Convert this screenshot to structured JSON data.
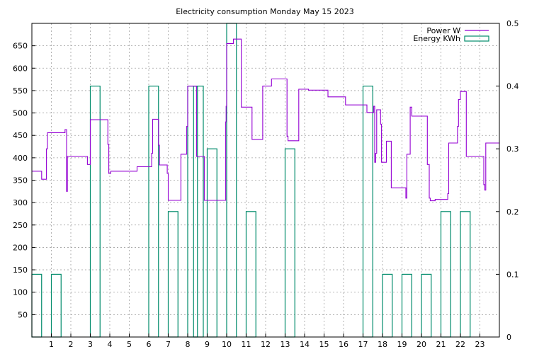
{
  "chart_data": {
    "type": "line",
    "title": "Electricity consumption Monday May 15 2023",
    "grid": true,
    "legend_position": "top-right",
    "x_axis": {
      "range": [
        0,
        24
      ],
      "ticks": [
        1,
        2,
        3,
        4,
        5,
        6,
        7,
        8,
        9,
        10,
        11,
        12,
        13,
        14,
        15,
        16,
        17,
        18,
        19,
        20,
        21,
        22,
        23
      ]
    },
    "y_axis_left": {
      "range": [
        0,
        700
      ],
      "ticks": [
        50,
        100,
        150,
        200,
        250,
        300,
        350,
        400,
        450,
        500,
        550,
        600,
        650
      ]
    },
    "y_axis_right": {
      "range": [
        0,
        0.5
      ],
      "ticks": [
        "0",
        "0.1",
        "0.2",
        "0.3",
        "0.4",
        "0.5"
      ],
      "tick_values": [
        0,
        0.1,
        0.2,
        0.3,
        0.4,
        0.5
      ]
    },
    "series": [
      {
        "name": "Power W",
        "type": "step-line",
        "axis": "left",
        "color": "#9400d3",
        "points": [
          [
            0.0,
            370
          ],
          [
            0.5,
            370
          ],
          [
            0.5,
            352
          ],
          [
            0.75,
            352
          ],
          [
            0.75,
            420
          ],
          [
            0.8,
            420
          ],
          [
            0.8,
            456
          ],
          [
            1.7,
            456
          ],
          [
            1.7,
            463
          ],
          [
            1.78,
            463
          ],
          [
            1.78,
            325
          ],
          [
            1.82,
            325
          ],
          [
            1.82,
            403
          ],
          [
            2.85,
            403
          ],
          [
            2.85,
            385
          ],
          [
            3.0,
            385
          ],
          [
            3.0,
            485
          ],
          [
            3.9,
            485
          ],
          [
            3.9,
            430
          ],
          [
            3.95,
            430
          ],
          [
            3.95,
            365
          ],
          [
            4.05,
            365
          ],
          [
            4.05,
            370
          ],
          [
            5.4,
            370
          ],
          [
            5.4,
            380
          ],
          [
            6.15,
            380
          ],
          [
            6.15,
            410
          ],
          [
            6.2,
            410
          ],
          [
            6.2,
            486
          ],
          [
            6.5,
            486
          ],
          [
            6.5,
            428
          ],
          [
            6.55,
            428
          ],
          [
            6.55,
            384
          ],
          [
            6.95,
            384
          ],
          [
            6.95,
            365
          ],
          [
            7.0,
            365
          ],
          [
            7.0,
            305
          ],
          [
            7.65,
            305
          ],
          [
            7.65,
            408
          ],
          [
            7.95,
            408
          ],
          [
            7.95,
            470
          ],
          [
            8.0,
            470
          ],
          [
            8.0,
            560
          ],
          [
            8.45,
            560
          ],
          [
            8.45,
            403
          ],
          [
            8.85,
            403
          ],
          [
            8.85,
            305
          ],
          [
            9.95,
            305
          ],
          [
            9.95,
            480
          ],
          [
            9.97,
            480
          ],
          [
            9.97,
            515
          ],
          [
            10.0,
            515
          ],
          [
            10.0,
            655
          ],
          [
            10.35,
            655
          ],
          [
            10.35,
            665
          ],
          [
            10.75,
            665
          ],
          [
            10.75,
            513
          ],
          [
            11.3,
            513
          ],
          [
            11.3,
            441
          ],
          [
            11.85,
            441
          ],
          [
            11.85,
            560
          ],
          [
            12.3,
            560
          ],
          [
            12.3,
            576
          ],
          [
            13.1,
            576
          ],
          [
            13.1,
            448
          ],
          [
            13.15,
            448
          ],
          [
            13.15,
            438
          ],
          [
            13.7,
            438
          ],
          [
            13.7,
            553
          ],
          [
            14.2,
            553
          ],
          [
            14.2,
            551
          ],
          [
            15.2,
            551
          ],
          [
            15.2,
            536
          ],
          [
            16.1,
            536
          ],
          [
            16.1,
            518
          ],
          [
            17.2,
            518
          ],
          [
            17.2,
            501
          ],
          [
            17.55,
            501
          ],
          [
            17.55,
            515
          ],
          [
            17.6,
            515
          ],
          [
            17.6,
            390
          ],
          [
            17.65,
            390
          ],
          [
            17.65,
            410
          ],
          [
            17.7,
            410
          ],
          [
            17.7,
            507
          ],
          [
            17.9,
            507
          ],
          [
            17.9,
            475
          ],
          [
            17.95,
            475
          ],
          [
            17.95,
            390
          ],
          [
            18.2,
            390
          ],
          [
            18.2,
            437
          ],
          [
            18.45,
            437
          ],
          [
            18.45,
            333
          ],
          [
            19.2,
            333
          ],
          [
            19.2,
            310
          ],
          [
            19.25,
            310
          ],
          [
            19.25,
            408
          ],
          [
            19.42,
            408
          ],
          [
            19.42,
            513
          ],
          [
            19.5,
            513
          ],
          [
            19.5,
            493
          ],
          [
            20.3,
            493
          ],
          [
            20.3,
            385
          ],
          [
            20.4,
            385
          ],
          [
            20.4,
            310
          ],
          [
            20.45,
            310
          ],
          [
            20.45,
            304
          ],
          [
            20.7,
            304
          ],
          [
            20.7,
            307
          ],
          [
            21.35,
            307
          ],
          [
            21.35,
            320
          ],
          [
            21.4,
            320
          ],
          [
            21.4,
            433
          ],
          [
            21.85,
            433
          ],
          [
            21.85,
            470
          ],
          [
            21.9,
            470
          ],
          [
            21.9,
            530
          ],
          [
            22.0,
            530
          ],
          [
            22.0,
            548
          ],
          [
            22.3,
            548
          ],
          [
            22.3,
            403
          ],
          [
            23.2,
            403
          ],
          [
            23.2,
            340
          ],
          [
            23.25,
            340
          ],
          [
            23.25,
            328
          ],
          [
            23.3,
            328
          ],
          [
            23.3,
            433
          ],
          [
            24.0,
            433
          ]
        ]
      },
      {
        "name": "Energy KWh",
        "type": "bar",
        "axis": "right",
        "color": "#008b6b",
        "x": [
          0,
          1,
          2,
          3,
          4,
          5,
          6,
          7,
          8,
          9,
          10,
          11,
          12,
          13,
          14,
          15,
          16,
          17,
          18,
          19,
          20,
          21,
          22,
          23
        ],
        "values": [
          0.1,
          0.1,
          0,
          0.4,
          0,
          0,
          0.4,
          0.2,
          0.4,
          0.3,
          0.5,
          0.2,
          0,
          0.3,
          0,
          0,
          0,
          0.4,
          0.1,
          0.1,
          0.1,
          0.2,
          0.2,
          0
        ],
        "extra_bars": [
          {
            "x": 8.3,
            "value": 0.4
          }
        ]
      }
    ]
  }
}
